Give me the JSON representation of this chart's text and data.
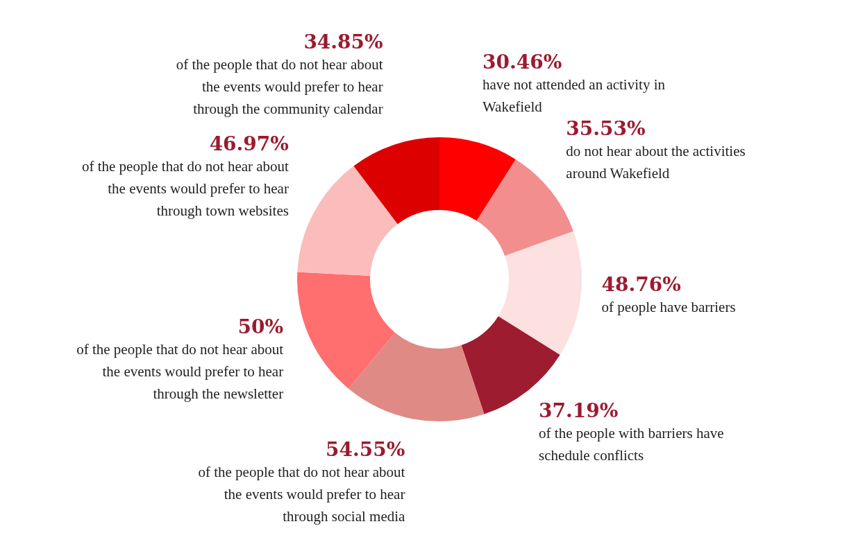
{
  "chart_data": {
    "type": "donut",
    "categories": [
      "have not attended an activity in Wakefield",
      "do not hear about the activities around Wakefield",
      "of people have barriers",
      "of the people with barriers have schedule conflicts",
      "of the people that do not hear about the events would prefer to hear through  social media",
      "of the people that do not hear about the events would prefer to hear through the newsletter",
      "of the people that do not hear about the events would prefer to hear through town websites",
      "of the people that do not hear about the events would prefer to hear through the community calendar"
    ],
    "values": [
      30.46,
      35.53,
      48.76,
      37.19,
      54.55,
      50,
      46.97,
      34.85
    ],
    "value_labels": [
      "30.46%",
      "35.53%",
      "48.76%",
      "37.19%",
      "54.55%",
      "50%",
      "46.97%",
      "34.85%"
    ],
    "colors": [
      "#fe0000",
      "#f28e8e",
      "#fde0e0",
      "#9e1c30",
      "#e08a85",
      "#ff6f6f",
      "#fbbcbc",
      "#dd0000"
    ],
    "legend": false
  }
}
